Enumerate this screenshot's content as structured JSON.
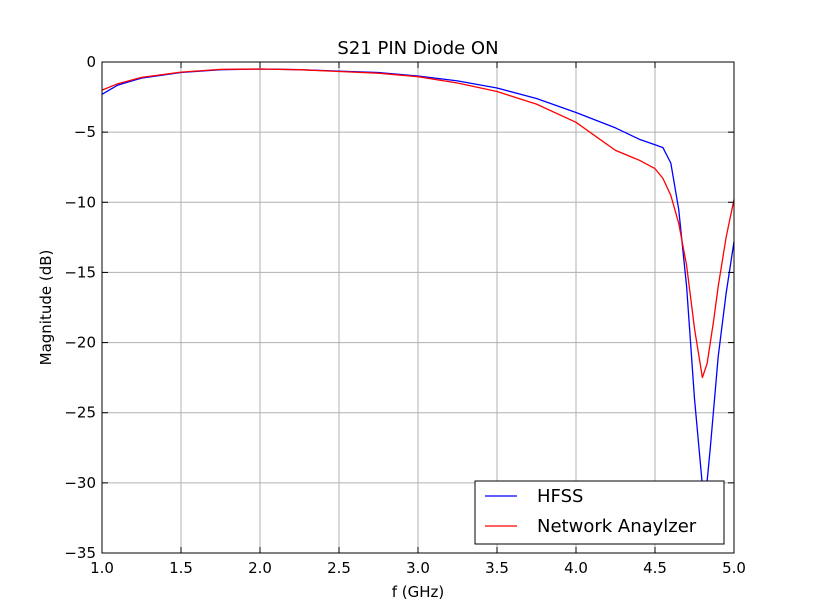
{
  "chart_data": {
    "type": "line",
    "title": "S21 PIN Diode ON",
    "xlabel": "f (GHz)",
    "ylabel": "Magnitude (dB)",
    "xlim": [
      1.0,
      5.0
    ],
    "ylim": [
      -35,
      0
    ],
    "x_ticks": [
      1.0,
      1.5,
      2.0,
      2.5,
      3.0,
      3.5,
      4.0,
      4.5,
      5.0
    ],
    "x_tick_labels": [
      "1.0",
      "1.5",
      "2.0",
      "2.5",
      "3.0",
      "3.5",
      "4.0",
      "4.5",
      "5.0"
    ],
    "y_ticks": [
      0,
      -5,
      -10,
      -15,
      -20,
      -25,
      -30,
      -35
    ],
    "y_tick_labels": [
      "0",
      "−5",
      "−10",
      "−15",
      "−20",
      "−25",
      "−30",
      "−35"
    ],
    "grid": true,
    "legend_position": "bottom-right",
    "series": [
      {
        "name": "HFSS",
        "color": "#0000ff",
        "points": [
          [
            1.0,
            -2.3
          ],
          [
            1.1,
            -1.65
          ],
          [
            1.25,
            -1.15
          ],
          [
            1.5,
            -0.75
          ],
          [
            1.75,
            -0.55
          ],
          [
            2.0,
            -0.5
          ],
          [
            2.25,
            -0.55
          ],
          [
            2.5,
            -0.65
          ],
          [
            2.75,
            -0.75
          ],
          [
            3.0,
            -1.0
          ],
          [
            3.25,
            -1.35
          ],
          [
            3.5,
            -1.85
          ],
          [
            3.75,
            -2.6
          ],
          [
            4.0,
            -3.6
          ],
          [
            4.25,
            -4.7
          ],
          [
            4.4,
            -5.5
          ],
          [
            4.5,
            -5.9
          ],
          [
            4.55,
            -6.1
          ],
          [
            4.6,
            -7.2
          ],
          [
            4.65,
            -10.5
          ],
          [
            4.7,
            -16.0
          ],
          [
            4.75,
            -24.0
          ],
          [
            4.8,
            -30.2
          ],
          [
            4.82,
            -31.0
          ],
          [
            4.85,
            -27.5
          ],
          [
            4.9,
            -21.0
          ],
          [
            4.95,
            -16.5
          ],
          [
            5.0,
            -12.8
          ]
        ]
      },
      {
        "name": "Network Anaylzer",
        "color": "#ff0000",
        "points": [
          [
            1.0,
            -2.0
          ],
          [
            1.1,
            -1.55
          ],
          [
            1.25,
            -1.1
          ],
          [
            1.5,
            -0.72
          ],
          [
            1.75,
            -0.53
          ],
          [
            2.0,
            -0.5
          ],
          [
            2.25,
            -0.55
          ],
          [
            2.5,
            -0.68
          ],
          [
            2.75,
            -0.8
          ],
          [
            3.0,
            -1.05
          ],
          [
            3.25,
            -1.5
          ],
          [
            3.5,
            -2.1
          ],
          [
            3.75,
            -3.0
          ],
          [
            4.0,
            -4.3
          ],
          [
            4.15,
            -5.5
          ],
          [
            4.25,
            -6.3
          ],
          [
            4.4,
            -7.0
          ],
          [
            4.5,
            -7.6
          ],
          [
            4.55,
            -8.3
          ],
          [
            4.6,
            -9.5
          ],
          [
            4.65,
            -11.5
          ],
          [
            4.7,
            -14.5
          ],
          [
            4.75,
            -19.0
          ],
          [
            4.8,
            -22.5
          ],
          [
            4.83,
            -21.5
          ],
          [
            4.87,
            -18.5
          ],
          [
            4.9,
            -16.0
          ],
          [
            4.95,
            -12.5
          ],
          [
            5.0,
            -9.8
          ]
        ]
      }
    ]
  }
}
